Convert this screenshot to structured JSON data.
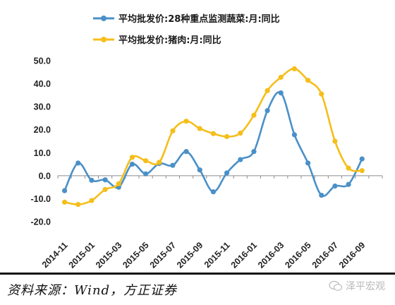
{
  "chart_data": {
    "type": "line",
    "x": [
      "2014-11",
      "2014-12",
      "2015-01",
      "2015-02",
      "2015-03",
      "2015-04",
      "2015-05",
      "2015-06",
      "2015-07",
      "2015-08",
      "2015-09",
      "2015-10",
      "2015-11",
      "2015-12",
      "2016-01",
      "2016-02",
      "2016-03",
      "2016-04",
      "2016-05",
      "2016-06",
      "2016-07",
      "2016-08",
      "2016-09",
      "2016-10"
    ],
    "xticks": [
      "2014-11",
      "2015-01",
      "2015-03",
      "2015-05",
      "2015-07",
      "2015-09",
      "2015-11",
      "2016-01",
      "2016-03",
      "2016-05",
      "2016-07",
      "2016-09"
    ],
    "yticks": [
      "50.0",
      "40.0",
      "30.0",
      "20.0",
      "10.0",
      "0.0",
      "-10.0",
      "-20.0"
    ],
    "ylim": [
      -20,
      50
    ],
    "series": [
      {
        "name": "平均批发价:28种重点监测蔬菜:月:同比",
        "color": "#4a90c8",
        "values": [
          -6.5,
          5.5,
          -2,
          -1.8,
          -5,
          5,
          0.8,
          5.3,
          4.5,
          10.5,
          2.5,
          -7,
          1.2,
          7,
          10.5,
          28.3,
          36,
          17.8,
          5.5,
          -8.5,
          -4.5,
          -3.8,
          7.3,
          null
        ]
      },
      {
        "name": "平均批发价:猪肉:月:同比",
        "color": "#f5be1a",
        "values": [
          -11.5,
          -12.5,
          -10.8,
          -6,
          -3.5,
          8,
          6.5,
          5.8,
          19.5,
          23.7,
          20.5,
          18.3,
          17,
          18.5,
          26.3,
          37,
          42.8,
          46.5,
          41.5,
          35.5,
          15,
          3.3,
          2.2,
          null
        ]
      }
    ]
  },
  "source": "资料来源：Wind，方正证券",
  "watermark": "泽平宏观"
}
